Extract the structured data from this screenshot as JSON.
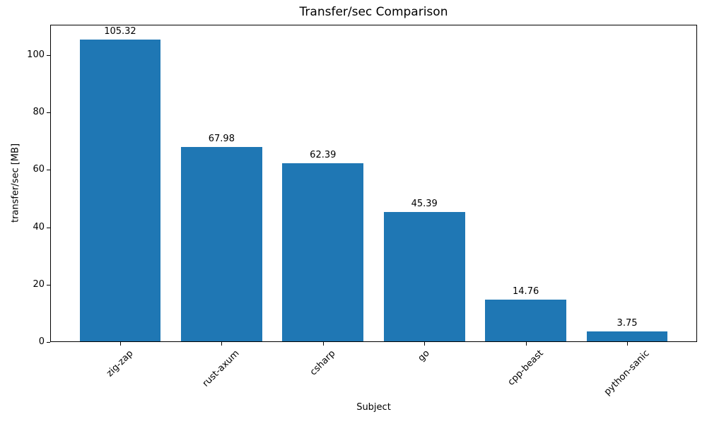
{
  "chart_data": {
    "type": "bar",
    "title": "Transfer/sec Comparison",
    "xlabel": "Subject",
    "ylabel": "transfer/sec [MB]",
    "categories": [
      "zig-zap",
      "rust-axum",
      "csharp",
      "go",
      "cpp-beast",
      "python-sanic"
    ],
    "values": [
      105.32,
      67.98,
      62.39,
      45.39,
      14.76,
      3.75
    ],
    "bar_labels": [
      "105.32",
      "67.98",
      "62.39",
      "45.39",
      "14.76",
      "3.75"
    ],
    "yticks": [
      0,
      20,
      40,
      60,
      80,
      100
    ],
    "ytick_labels": [
      "0",
      "20",
      "40",
      "60",
      "80",
      "100"
    ],
    "ylim": [
      0,
      110.6
    ],
    "bar_color": "#1f77b4",
    "text_color": "#000000",
    "axis_color": "#000000",
    "xtick_rotation_deg": 45,
    "grid": false,
    "legend_position": "none"
  }
}
